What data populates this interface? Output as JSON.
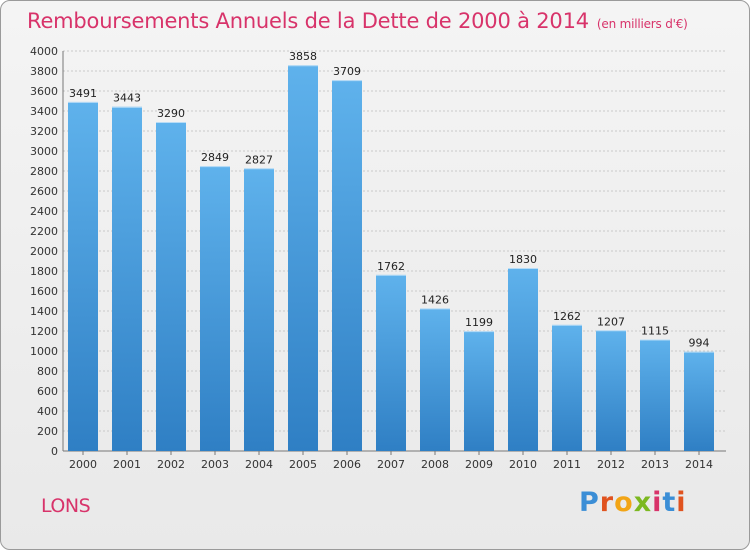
{
  "header": {
    "title": "Remboursements Annuels de la Dette de 2000 à 2014",
    "unit": "(en milliers d'€)"
  },
  "footer": {
    "place": "LONS",
    "logo": "Proxiti"
  },
  "colors": {
    "accent": "#d8336a",
    "bar_top": "#5fb2ec",
    "bar_bottom": "#2f7fc4"
  },
  "chart_data": {
    "type": "bar",
    "title": "Remboursements Annuels de la Dette de 2000 à 2014",
    "subtitle": "(en milliers d'€)",
    "categories": [
      "2000",
      "2001",
      "2002",
      "2003",
      "2004",
      "2005",
      "2006",
      "2007",
      "2008",
      "2009",
      "2010",
      "2011",
      "2012",
      "2013",
      "2014"
    ],
    "values": [
      3491,
      3443,
      3290,
      2849,
      2827,
      3858,
      3709,
      1762,
      1426,
      1199,
      1830,
      1262,
      1207,
      1115,
      994
    ],
    "ylim": [
      0,
      4000
    ],
    "yticks": [
      0,
      200,
      400,
      600,
      800,
      1000,
      1200,
      1400,
      1600,
      1800,
      2000,
      2200,
      2400,
      2600,
      2800,
      3000,
      3200,
      3400,
      3600,
      3800,
      4000
    ],
    "grid": true,
    "data_labels": true
  }
}
